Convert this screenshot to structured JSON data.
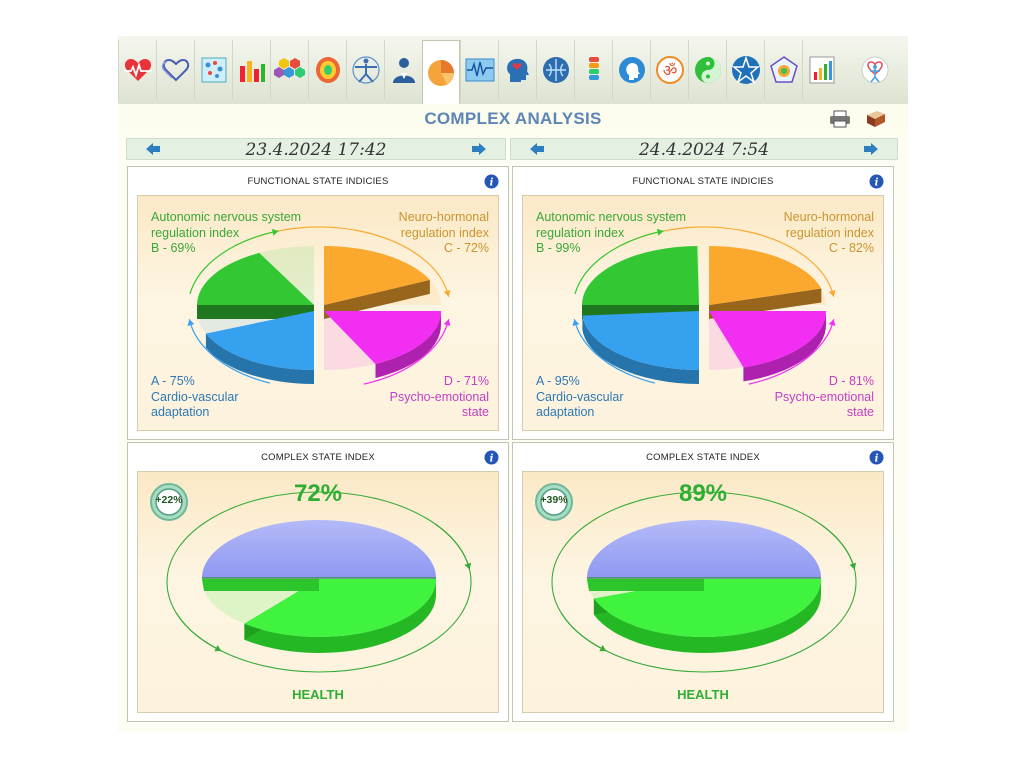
{
  "title": "COMPLEX ANALYSIS",
  "toolbar": {
    "icons": [
      "heart-ecg-icon",
      "hearts-outline-icon",
      "blood-cells-icon",
      "bar-chart-icon",
      "hexagon-grid-icon",
      "brain-map-icon",
      "vitruvian-man-icon",
      "doctor-icon",
      "pie-chart-icon",
      "waveform-monitor-icon",
      "head-heart-icon",
      "brain-icon",
      "spine-icon",
      "profile-head-icon",
      "om-icon",
      "yin-yang-icon",
      "pentagram-icon",
      "chakra-pentagon-icon",
      "report-chart-icon"
    ],
    "active_index": 8,
    "logo": "figure-logo-icon"
  },
  "sessions": [
    {
      "date": "23.4.2024 17:42",
      "functional": {
        "title": "FUNCTIONAL STATE INDICIES",
        "b_label": "Autonomic nervous system\nregulation index\nB - 69%",
        "c_label": "Neuro-hormonal\nregulation index\nC - 72%",
        "a_label": "A - 75%\nCardio-vascular\nadaptation",
        "d_label": "D - 71%\nPsycho-emotional\nstate",
        "values": {
          "A": 75,
          "B": 69,
          "C": 72,
          "D": 71
        }
      },
      "complex": {
        "title": "COMPLEX STATE INDEX",
        "value_label": "72%",
        "value": 72,
        "change": "+22%",
        "bottom_label": "HEALTH"
      }
    },
    {
      "date": "24.4.2024 7:54",
      "functional": {
        "title": "FUNCTIONAL STATE INDICIES",
        "b_label": "Autonomic nervous system\nregulation index\nB - 99%",
        "c_label": "Neuro-hormonal\nregulation index\nC - 82%",
        "a_label": "A - 95%\nCardio-vascular\nadaptation",
        "d_label": "D - 81%\nPsycho-emotional\nstate",
        "values": {
          "A": 95,
          "B": 99,
          "C": 82,
          "D": 81
        }
      },
      "complex": {
        "title": "COMPLEX STATE INDEX",
        "value_label": "89%",
        "value": 89,
        "change": "+39%",
        "bottom_label": "HEALTH"
      }
    }
  ],
  "colors": {
    "A": "#35a1ef",
    "B": "#33c833",
    "C": "#fba82e",
    "D": "#f22ef2",
    "health": "#3ff33f",
    "health_top": "#8f98f2"
  }
}
